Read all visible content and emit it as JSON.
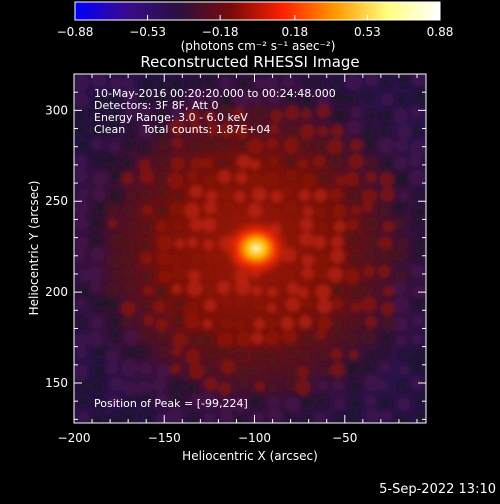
{
  "chart_data": {
    "type": "heatmap",
    "title": "Reconstructed RHESSI Image",
    "xlabel": "Heliocentric X (arcsec)",
    "ylabel": "Heliocentric Y (arcsec)",
    "xlim": [
      -200,
      -5
    ],
    "ylim": [
      128,
      320
    ],
    "xticks": [
      -200,
      -150,
      -100,
      -50
    ],
    "xtick_labels": [
      "−200",
      "−150",
      "−100",
      "−50"
    ],
    "yticks": [
      150,
      200,
      250,
      300
    ],
    "ytick_labels": [
      "150",
      "200",
      "250",
      "300"
    ],
    "colorbar": {
      "min": -0.88,
      "max": 0.88,
      "ticks": [
        -0.88,
        -0.53,
        -0.18,
        0.18,
        0.53,
        0.88
      ],
      "tick_labels": [
        "−0.88",
        "−0.53",
        "−0.18",
        "0.18",
        "0.53",
        "0.88"
      ],
      "units_text": "(photons cm⁻² s⁻¹ asec⁻²)",
      "colors": [
        "#0000ff",
        "#3a0a8c",
        "#2a1040",
        "#7a0a0a",
        "#ff2000",
        "#ff9a00",
        "#ffff80",
        "#ffffff"
      ]
    },
    "annotations": [
      "10-May-2016 00:20:20.000 to 00:24:48.000",
      "Detectors: 3F 8F, Att 0",
      "Energy Range: 3.0 - 6.0 keV",
      "Clean     Total counts: 1.87E+04"
    ],
    "peak": {
      "x": -99,
      "y": 224,
      "label": "Position of Peak = [-99,224]"
    },
    "grid": false,
    "footer": "5-Sep-2022 13:10"
  }
}
